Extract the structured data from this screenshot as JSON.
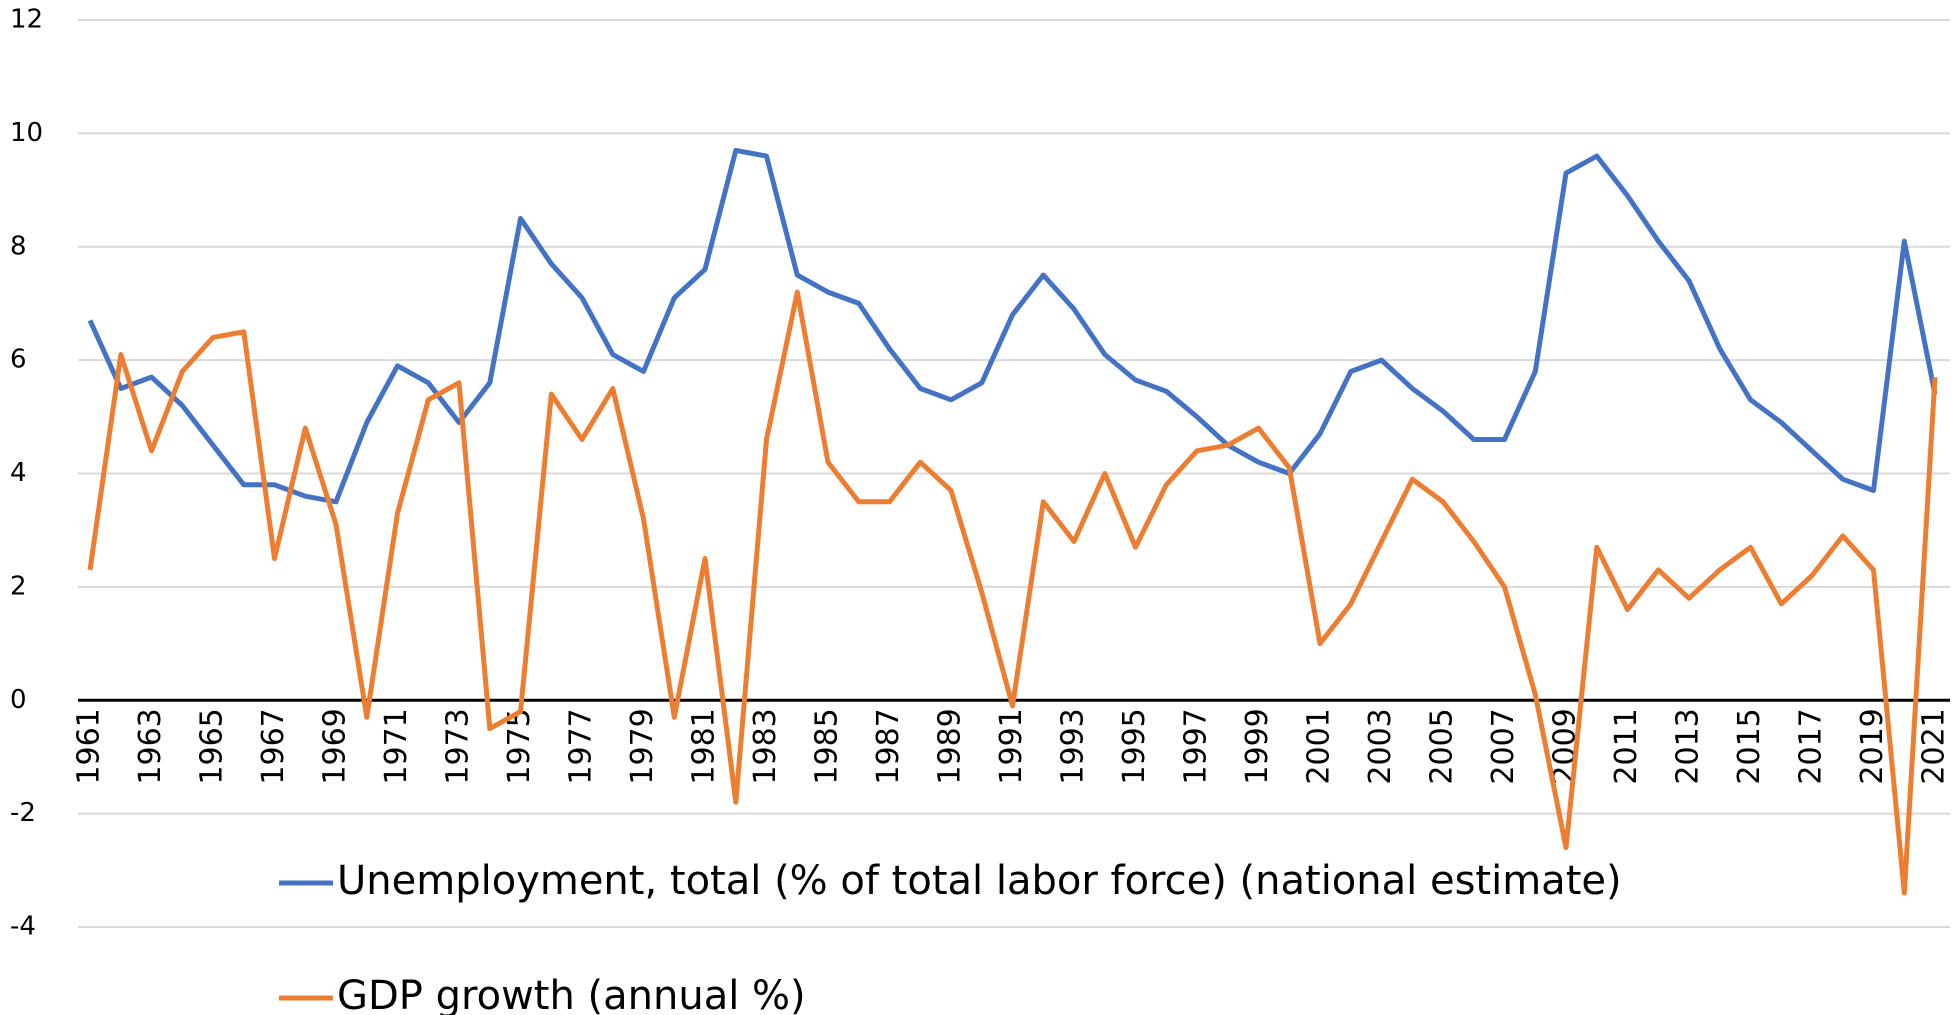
{
  "chart_data": {
    "type": "line",
    "categories": [
      "1961",
      null,
      "1963",
      null,
      "1965",
      null,
      "1967",
      null,
      "1969",
      null,
      "1971",
      null,
      "1973",
      null,
      "1975",
      null,
      "1977",
      null,
      "1979",
      null,
      "1981",
      null,
      "1983",
      null,
      "1985",
      null,
      "1987",
      null,
      "1989",
      null,
      "1991",
      null,
      "1993",
      null,
      "1995",
      null,
      "1997",
      null,
      "1999",
      null,
      "2001",
      null,
      "2003",
      null,
      "2005",
      null,
      "2007",
      null,
      "2009",
      null,
      "2011",
      null,
      "2013",
      null,
      "2015",
      null,
      "2017",
      null,
      "2019",
      null,
      "2021"
    ],
    "series": [
      {
        "name": "Unemployment, total (% of total labor force) (national estimate)",
        "color": "#4472c4",
        "values": [
          6.7,
          5.5,
          5.7,
          5.2,
          4.5,
          3.8,
          3.8,
          3.6,
          3.5,
          4.9,
          5.9,
          5.6,
          4.9,
          5.6,
          8.5,
          7.7,
          7.1,
          6.1,
          5.8,
          7.1,
          7.6,
          9.7,
          9.6,
          7.5,
          7.2,
          7.0,
          6.2,
          5.5,
          5.3,
          5.6,
          6.8,
          7.5,
          6.9,
          6.1,
          5.65,
          5.45,
          5.0,
          4.5,
          4.2,
          4.0,
          4.7,
          5.8,
          6.0,
          5.5,
          5.1,
          4.6,
          4.6,
          5.8,
          9.3,
          9.6,
          8.9,
          8.1,
          7.4,
          6.2,
          5.3,
          4.9,
          4.4,
          3.9,
          3.7,
          8.1,
          5.4
        ]
      },
      {
        "name": "GDP growth (annual %)",
        "color": "#ed7d31",
        "values": [
          2.3,
          6.1,
          4.4,
          5.8,
          6.4,
          6.5,
          2.5,
          4.8,
          3.1,
          -0.3,
          3.3,
          5.3,
          5.6,
          -0.5,
          -0.2,
          5.4,
          4.6,
          5.5,
          3.2,
          -0.3,
          2.5,
          -1.8,
          4.6,
          7.2,
          4.2,
          3.5,
          3.5,
          4.2,
          3.7,
          1.9,
          -0.1,
          3.5,
          2.8,
          4.0,
          2.7,
          3.8,
          4.4,
          4.5,
          4.8,
          4.1,
          1.0,
          1.7,
          2.8,
          3.9,
          3.5,
          2.8,
          2.0,
          0.1,
          -2.6,
          2.7,
          1.6,
          2.3,
          1.8,
          2.3,
          2.7,
          1.7,
          2.2,
          2.9,
          2.3,
          -3.4,
          5.7
        ]
      }
    ],
    "ylim": [
      -4,
      12
    ],
    "yticks": [
      -4,
      -2,
      0,
      2,
      4,
      6,
      8,
      10,
      12
    ],
    "grid": true,
    "legend": "bottom"
  }
}
